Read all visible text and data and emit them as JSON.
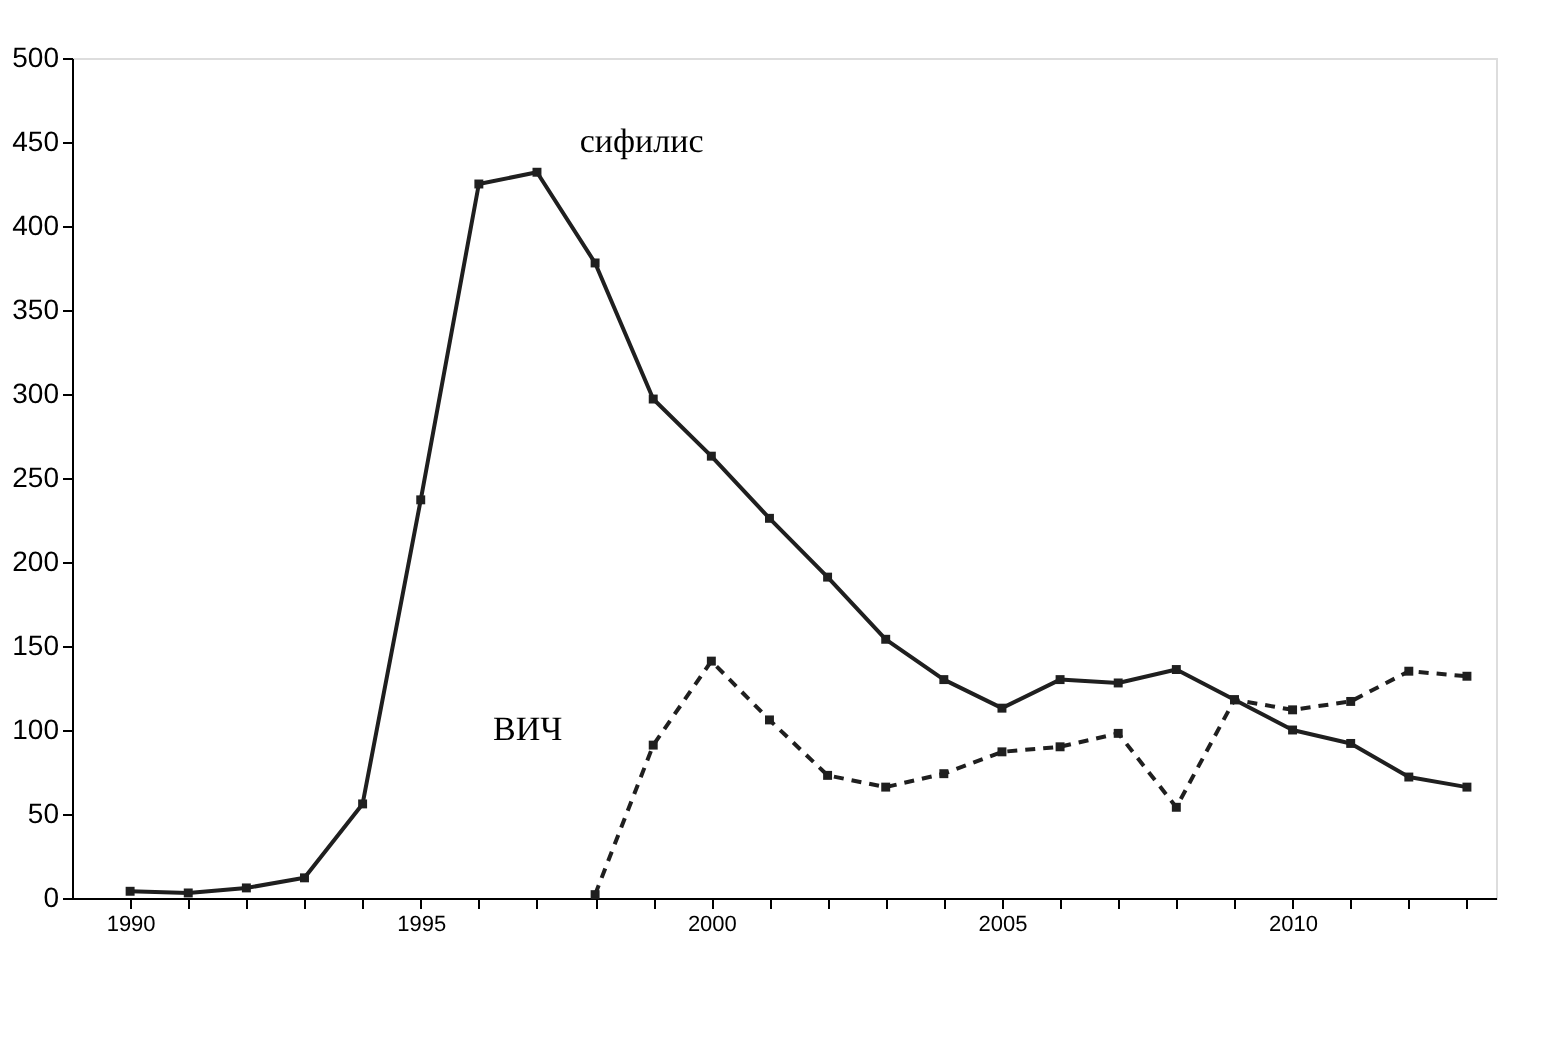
{
  "chart_data": {
    "type": "line",
    "xlim": [
      1989,
      2013.5
    ],
    "ylim": [
      0,
      500
    ],
    "xticks": [
      1990,
      {
        "value": 1991,
        "label": null
      },
      {
        "value": 1992,
        "label": null
      },
      {
        "value": 1993,
        "label": null
      },
      {
        "value": 1994,
        "label": null
      },
      1995,
      {
        "value": 1996,
        "label": null
      },
      {
        "value": 1997,
        "label": null
      },
      {
        "value": 1998,
        "label": null
      },
      {
        "value": 1999,
        "label": null
      },
      2000,
      {
        "value": 2001,
        "label": null
      },
      {
        "value": 2002,
        "label": null
      },
      {
        "value": 2003,
        "label": null
      },
      {
        "value": 2004,
        "label": null
      },
      2005,
      {
        "value": 2006,
        "label": null
      },
      {
        "value": 2007,
        "label": null
      },
      {
        "value": 2008,
        "label": null
      },
      {
        "value": 2009,
        "label": null
      },
      2010,
      {
        "value": 2011,
        "label": null
      },
      {
        "value": 2012,
        "label": null
      },
      {
        "value": 2013,
        "label": null
      }
    ],
    "yticks": [
      0,
      50,
      100,
      150,
      200,
      250,
      300,
      350,
      400,
      450,
      500
    ],
    "grid": false,
    "marker": "square",
    "series": [
      {
        "color": "#1f1f1f",
        "line_style": "solid",
        "x": [
          1990,
          1991,
          1992,
          1993,
          1994,
          1995,
          1996,
          1997,
          1998,
          1999,
          2000,
          2001,
          2002,
          2003,
          2004,
          2005,
          2006,
          2007,
          2008,
          2009,
          2010,
          2011,
          2012,
          2013
        ],
        "values": [
          4,
          3,
          6,
          12,
          56,
          237,
          425,
          432,
          378,
          297,
          263,
          226,
          191,
          154,
          130,
          113,
          130,
          128,
          136,
          118,
          100,
          92,
          72,
          66
        ]
      },
      {
        "color": "#1f1f1f",
        "line_style": "dashed",
        "x": [
          1998,
          1999,
          2000,
          2001,
          2002,
          2003,
          2004,
          2005,
          2006,
          2007,
          2008,
          2009,
          2010,
          2011,
          2012,
          2013
        ],
        "values": [
          2,
          91,
          141,
          106,
          73,
          66,
          74,
          87,
          90,
          98,
          54,
          118,
          112,
          117,
          135,
          132
        ]
      }
    ],
    "annotations": [
      "сифилис",
      "ВИЧ"
    ]
  }
}
